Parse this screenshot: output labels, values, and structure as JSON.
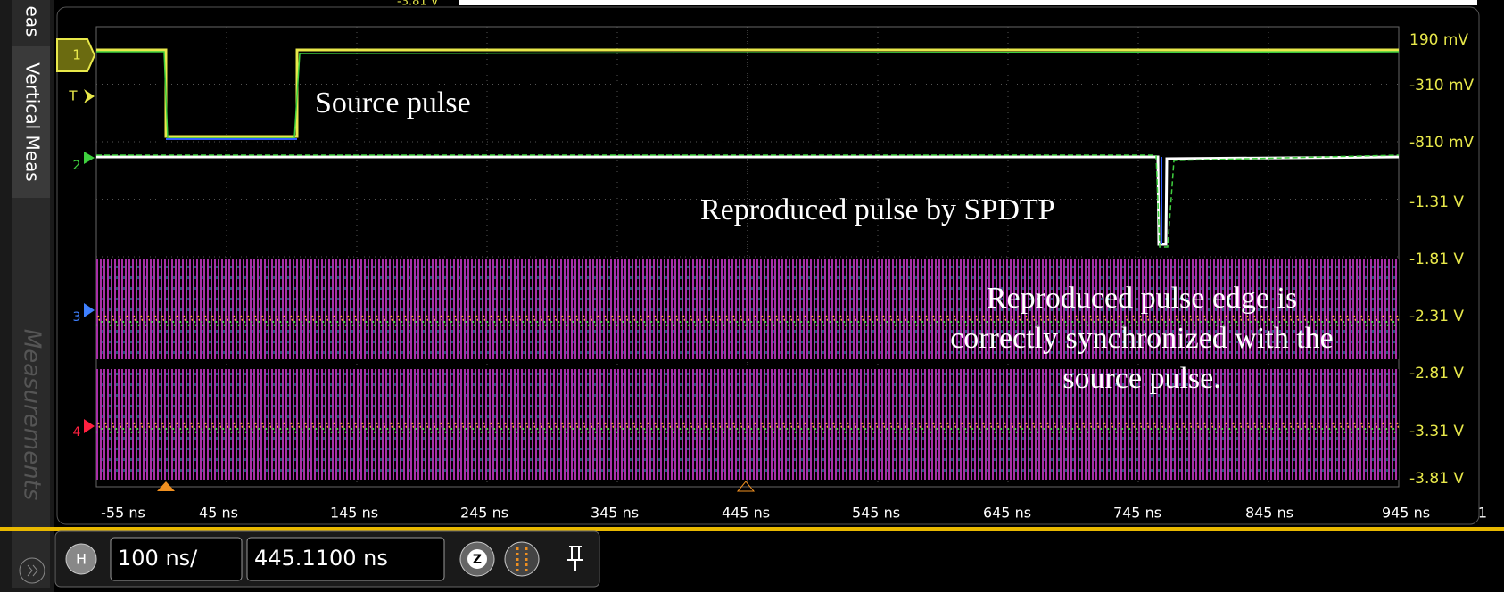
{
  "top_readout": "-3.81 V",
  "side_tabs": {
    "top": "eas",
    "vertical_meas": "Vertical Meas",
    "measurements": "Measurements"
  },
  "channel_markers": {
    "ch1": "1",
    "trigger": "T",
    "ch2": "2",
    "ch3": "3",
    "ch4": "4"
  },
  "y_labels": [
    "190 mV",
    "-310 mV",
    "-810 mV",
    "-1.31 V",
    "-1.81 V",
    "-2.31 V",
    "-2.81 V",
    "-3.31 V",
    "-3.81 V"
  ],
  "x_labels": [
    "-55 ns",
    "45 ns",
    "145 ns",
    "245 ns",
    "345 ns",
    "445 ns",
    "545 ns",
    "645 ns",
    "745 ns",
    "845 ns",
    "945 ns"
  ],
  "x_extra": "1",
  "annotations": {
    "source": "Source pulse",
    "reproduced": "Reproduced pulse by SPDTP",
    "sync": [
      "Reproduced pulse edge is",
      "correctly synchronized with the",
      "source pulse."
    ]
  },
  "controls": {
    "h_button": "H",
    "scale": "100 ns/",
    "position": "445.1100 ns",
    "zoom": "Z"
  }
}
